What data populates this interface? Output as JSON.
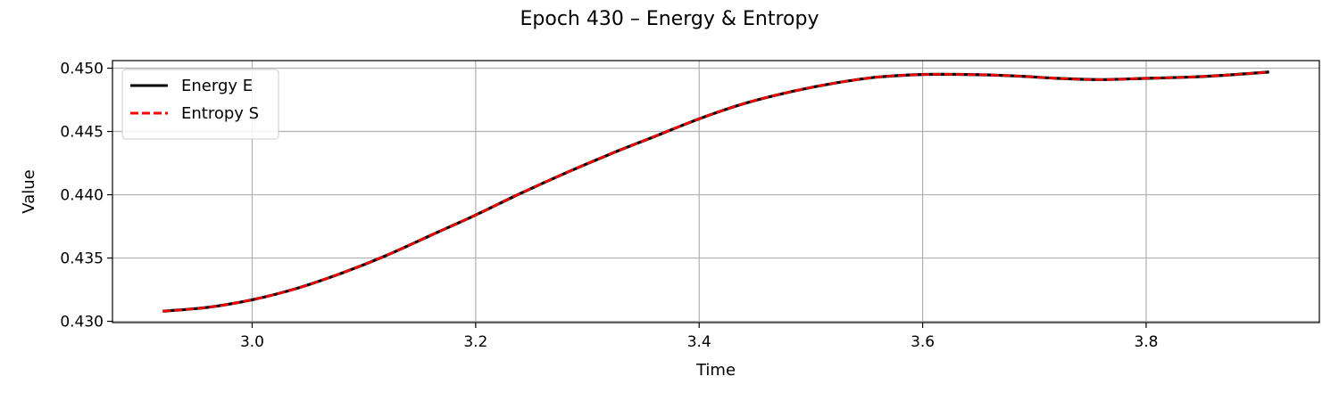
{
  "chart_data": {
    "type": "line",
    "title": "Epoch 430 – Energy & Entropy",
    "xlabel": "Time",
    "ylabel": "Value",
    "xlim": [
      2.875,
      3.955
    ],
    "ylim": [
      0.4299,
      0.4506
    ],
    "xticks": [
      3.0,
      3.2,
      3.4,
      3.6,
      3.8
    ],
    "xtick_labels": [
      "3.0",
      "3.2",
      "3.4",
      "3.6",
      "3.8"
    ],
    "yticks": [
      0.43,
      0.435,
      0.44,
      0.445,
      0.45
    ],
    "ytick_labels": [
      "0.430",
      "0.435",
      "0.440",
      "0.445",
      "0.450"
    ],
    "grid": true,
    "legend_position": "top-left",
    "x": [
      2.92,
      2.96,
      3.0,
      3.04,
      3.08,
      3.12,
      3.16,
      3.2,
      3.24,
      3.28,
      3.32,
      3.36,
      3.4,
      3.44,
      3.48,
      3.52,
      3.56,
      3.6,
      3.64,
      3.68,
      3.72,
      3.76,
      3.8,
      3.84,
      3.88,
      3.91
    ],
    "series": [
      {
        "name": "Energy E",
        "color": "#000000",
        "style": "solid",
        "values": [
          0.4308,
          0.4311,
          0.4317,
          0.4326,
          0.4338,
          0.4352,
          0.4368,
          0.4384,
          0.4401,
          0.4417,
          0.4432,
          0.4446,
          0.446,
          0.4472,
          0.4481,
          0.4488,
          0.4493,
          0.4495,
          0.4495,
          0.4494,
          0.4492,
          0.4491,
          0.4492,
          0.4493,
          0.4495,
          0.4497
        ]
      },
      {
        "name": "Entropy S",
        "color": "#ff0000",
        "style": "dashed",
        "values": [
          0.4308,
          0.4311,
          0.4317,
          0.4326,
          0.4338,
          0.4352,
          0.4368,
          0.4384,
          0.4401,
          0.4417,
          0.4432,
          0.4446,
          0.446,
          0.4472,
          0.4481,
          0.4488,
          0.4493,
          0.4495,
          0.4495,
          0.4494,
          0.4492,
          0.4491,
          0.4492,
          0.4493,
          0.4495,
          0.4497
        ]
      }
    ]
  }
}
